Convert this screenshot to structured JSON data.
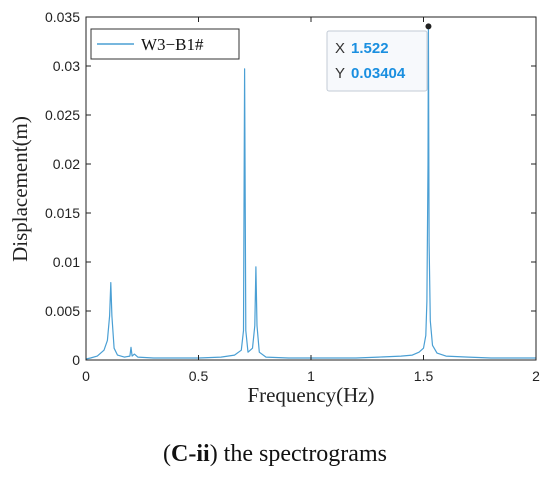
{
  "caption": {
    "open": "(",
    "label": "C-ii",
    "rest": ") the spectrograms"
  },
  "chart_data": {
    "type": "line",
    "title": "",
    "xlabel": "Frequency(Hz)",
    "ylabel": "Displacement(m)",
    "xlim": [
      0,
      2
    ],
    "ylim": [
      0,
      0.035
    ],
    "xticks": [
      0,
      0.5,
      1,
      1.5,
      2
    ],
    "yticks": [
      0,
      0.005,
      0.01,
      0.015,
      0.02,
      0.025,
      0.03,
      0.035
    ],
    "xtick_labels": [
      "0",
      "0.5",
      "1",
      "1.5",
      "2"
    ],
    "ytick_labels": [
      "0",
      "0.005",
      "0.01",
      "0.015",
      "0.02",
      "0.025",
      "0.03",
      "0.035"
    ],
    "grid": false,
    "legend": {
      "placement": "top-left",
      "entries": [
        "W3−B1#"
      ]
    },
    "series": [
      {
        "name": "W3−B1#",
        "color": "#4a9fd4",
        "x": [
          0,
          0.02,
          0.05,
          0.08,
          0.095,
          0.105,
          0.11,
          0.115,
          0.125,
          0.14,
          0.17,
          0.195,
          0.2,
          0.205,
          0.215,
          0.23,
          0.3,
          0.4,
          0.5,
          0.6,
          0.66,
          0.69,
          0.7,
          0.705,
          0.71,
          0.72,
          0.74,
          0.75,
          0.755,
          0.76,
          0.77,
          0.8,
          0.9,
          1.0,
          1.1,
          1.2,
          1.3,
          1.4,
          1.45,
          1.48,
          1.5,
          1.51,
          1.515,
          1.52,
          1.522,
          1.525,
          1.53,
          1.54,
          1.56,
          1.6,
          1.7,
          1.8,
          1.9,
          2.0
        ],
        "y": [
          0.0001,
          0.0002,
          0.0004,
          0.001,
          0.002,
          0.0045,
          0.0079,
          0.0045,
          0.0012,
          0.0005,
          0.0003,
          0.0004,
          0.0013,
          0.0004,
          0.0006,
          0.0003,
          0.0002,
          0.0002,
          0.0002,
          0.0003,
          0.0005,
          0.001,
          0.003,
          0.0297,
          0.003,
          0.0008,
          0.0012,
          0.0035,
          0.0095,
          0.0035,
          0.0008,
          0.0003,
          0.0002,
          0.0002,
          0.0002,
          0.0002,
          0.0003,
          0.0004,
          0.0005,
          0.0008,
          0.0012,
          0.0025,
          0.006,
          0.02,
          0.03404,
          0.012,
          0.004,
          0.0015,
          0.0007,
          0.0004,
          0.0003,
          0.0002,
          0.0002,
          0.0002
        ]
      }
    ],
    "datatip": {
      "x_key": "X",
      "x_value": "1.522",
      "y_key": "Y",
      "y_value": "0.03404",
      "x": 1.522,
      "y": 0.03404
    }
  },
  "colors": {
    "line": "#4a9fd4",
    "datatip_value": "#1a8fe0",
    "axis": "#222222"
  }
}
